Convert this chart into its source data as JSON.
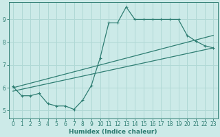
{
  "xlabel": "Humidex (Indice chaleur)",
  "bg_color": "#cceae8",
  "grid_color": "#b0d8d5",
  "line_color": "#2e7d72",
  "xlim": [
    -0.5,
    23.5
  ],
  "ylim": [
    4.65,
    9.75
  ],
  "xticks": [
    0,
    1,
    2,
    3,
    4,
    5,
    6,
    7,
    8,
    9,
    10,
    11,
    12,
    13,
    14,
    15,
    16,
    17,
    18,
    19,
    20,
    21,
    22,
    23
  ],
  "yticks": [
    5,
    6,
    7,
    8,
    9
  ],
  "line1_x": [
    0,
    1,
    2,
    3,
    4,
    5,
    6,
    7,
    8,
    9,
    10,
    11,
    12,
    13,
    14,
    15,
    16,
    17,
    18,
    19,
    20,
    21,
    22,
    23
  ],
  "line1_y": [
    6.05,
    5.65,
    5.65,
    5.75,
    5.3,
    5.2,
    5.2,
    5.05,
    5.45,
    6.1,
    7.3,
    8.85,
    8.85,
    9.55,
    9.0,
    9.0,
    9.0,
    9.0,
    9.0,
    9.0,
    8.3,
    8.05,
    7.85,
    7.75
  ],
  "line2_x": [
    0,
    23
  ],
  "line2_y": [
    5.85,
    7.75
  ],
  "line3_x": [
    0,
    23
  ],
  "line3_y": [
    6.0,
    8.3
  ],
  "marker_style": "+",
  "marker_size": 3.0,
  "linewidth": 0.9
}
